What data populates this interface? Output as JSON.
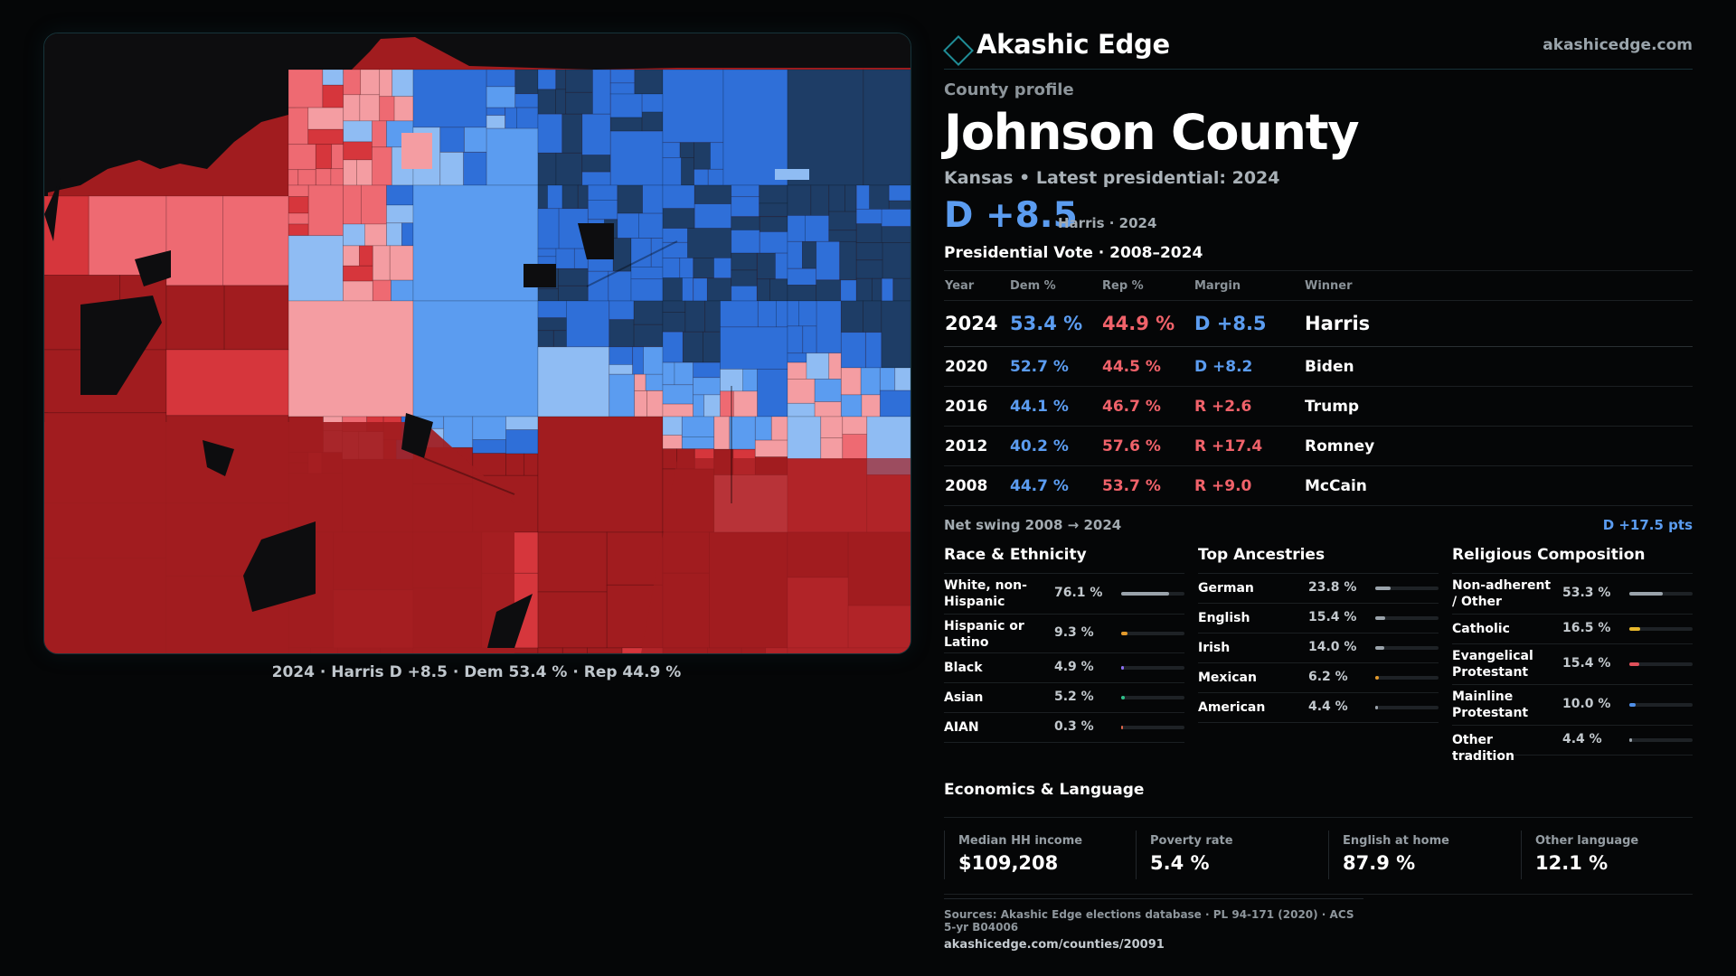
{
  "brand": {
    "name": "Akashic Edge",
    "url": "akashicedge.com"
  },
  "header": {
    "kicker": "County profile",
    "county": "Johnson County",
    "subhead": "Kansas • Latest presidential: 2024",
    "margin": "D +8.5",
    "margin_sub": "Harris · 2024"
  },
  "map": {
    "caption": "2024 · Harris D +8.5 · Dem 53.4 % · Rep 44.9 %",
    "colors": {
      "safe_r": "#a11c1f",
      "likely_r": "#d6363c",
      "lean_r": "#ee6a72",
      "tilt_r": "#f49da2",
      "tilt_d": "#8fbcf3",
      "lean_d": "#5b9cf0",
      "likely_d": "#2f6fd8",
      "safe_d": "#1e3d66",
      "no_data": "#0d0d0f"
    }
  },
  "votes": {
    "title": "Presidential Vote · 2008–2024",
    "headers": {
      "year": "Year",
      "dem": "Dem %",
      "rep": "Rep %",
      "margin": "Margin",
      "winner": "Winner"
    },
    "rows": [
      {
        "year": "2024",
        "dem": "53.4 %",
        "rep": "44.9 %",
        "margin": "D +8.5",
        "winner": "Harris"
      },
      {
        "year": "2020",
        "dem": "52.7 %",
        "rep": "44.5 %",
        "margin": "D +8.2",
        "winner": "Biden"
      },
      {
        "year": "2016",
        "dem": "44.1 %",
        "rep": "46.7 %",
        "margin": "R +2.6",
        "winner": "Trump"
      },
      {
        "year": "2012",
        "dem": "40.2 %",
        "rep": "57.6 %",
        "margin": "R +17.4",
        "winner": "Romney"
      },
      {
        "year": "2008",
        "dem": "44.7 %",
        "rep": "53.7 %",
        "margin": "R +9.0",
        "winner": "McCain"
      }
    ],
    "swing_label": "Net swing 2008 → 2024",
    "swing_value": "D +17.5 pts"
  },
  "race": {
    "title": "Race & Ethnicity",
    "items": [
      {
        "label": "White, non-Hispanic",
        "value": "76.1 %",
        "pct": 76.1,
        "color": "#9aa3ab"
      },
      {
        "label": "Hispanic or Latino",
        "value": "9.3 %",
        "pct": 9.3,
        "color": "#e39a2c"
      },
      {
        "label": "Black",
        "value": "4.9 %",
        "pct": 4.9,
        "color": "#8b6ff0"
      },
      {
        "label": "Asian",
        "value": "5.2 %",
        "pct": 5.2,
        "color": "#2fbf8a"
      },
      {
        "label": "AIAN",
        "value": "0.3 %",
        "pct": 0.3,
        "color": "#e0664a"
      }
    ]
  },
  "ancestries": {
    "title": "Top Ancestries",
    "items": [
      {
        "label": "German",
        "value": "23.8 %",
        "pct": 23.8,
        "color": "#9aa3ab"
      },
      {
        "label": "English",
        "value": "15.4 %",
        "pct": 15.4,
        "color": "#9aa3ab"
      },
      {
        "label": "Irish",
        "value": "14.0 %",
        "pct": 14.0,
        "color": "#9aa3ab"
      },
      {
        "label": "Mexican",
        "value": "6.2 %",
        "pct": 6.2,
        "color": "#e39a2c"
      },
      {
        "label": "American",
        "value": "4.4 %",
        "pct": 4.4,
        "color": "#9aa3ab"
      }
    ]
  },
  "religion": {
    "title": "Religious Composition",
    "items": [
      {
        "label": "Non-adherent / Other",
        "value": "53.3 %",
        "pct": 53.3,
        "color": "#9aa3ab"
      },
      {
        "label": "Catholic",
        "value": "16.5 %",
        "pct": 16.5,
        "color": "#e8b82c"
      },
      {
        "label": "Evangelical Protestant",
        "value": "15.4 %",
        "pct": 15.4,
        "color": "#e0505a"
      },
      {
        "label": "Mainline Protestant",
        "value": "10.0 %",
        "pct": 10.0,
        "color": "#4f8fe8"
      },
      {
        "label": "Other tradition",
        "value": "4.4 %",
        "pct": 4.4,
        "color": "#9aa3ab"
      }
    ]
  },
  "economics": {
    "title": "Economics & Language",
    "items": [
      {
        "label": "Median HH income",
        "value": "$109,208"
      },
      {
        "label": "Poverty rate",
        "value": "5.4 %"
      },
      {
        "label": "English at home",
        "value": "87.9 %"
      },
      {
        "label": "Other language",
        "value": "12.1 %"
      }
    ]
  },
  "sources": {
    "line1": "Sources: Akashic Edge elections database · PL 94-171 (2020) · ACS 5-yr B04006",
    "line2": "akashicedge.com/counties/20091"
  }
}
